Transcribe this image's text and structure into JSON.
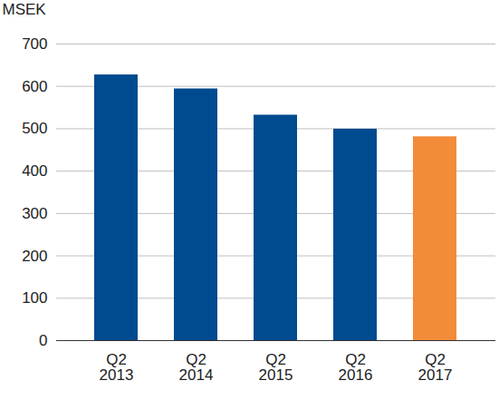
{
  "chart_data": {
    "type": "bar",
    "y_label": "MSEK",
    "categories": [
      "Q2 2013",
      "Q2 2014",
      "Q2 2015",
      "Q2 2016",
      "Q2 2017"
    ],
    "values": [
      627,
      594,
      532,
      499,
      481
    ],
    "colors": [
      "#004a8f",
      "#004a8f",
      "#004a8f",
      "#004a8f",
      "#f28c38"
    ],
    "ylim": [
      0,
      700
    ],
    "yticks": [
      0,
      100,
      200,
      300,
      400,
      500,
      600,
      700
    ],
    "grid": true
  }
}
